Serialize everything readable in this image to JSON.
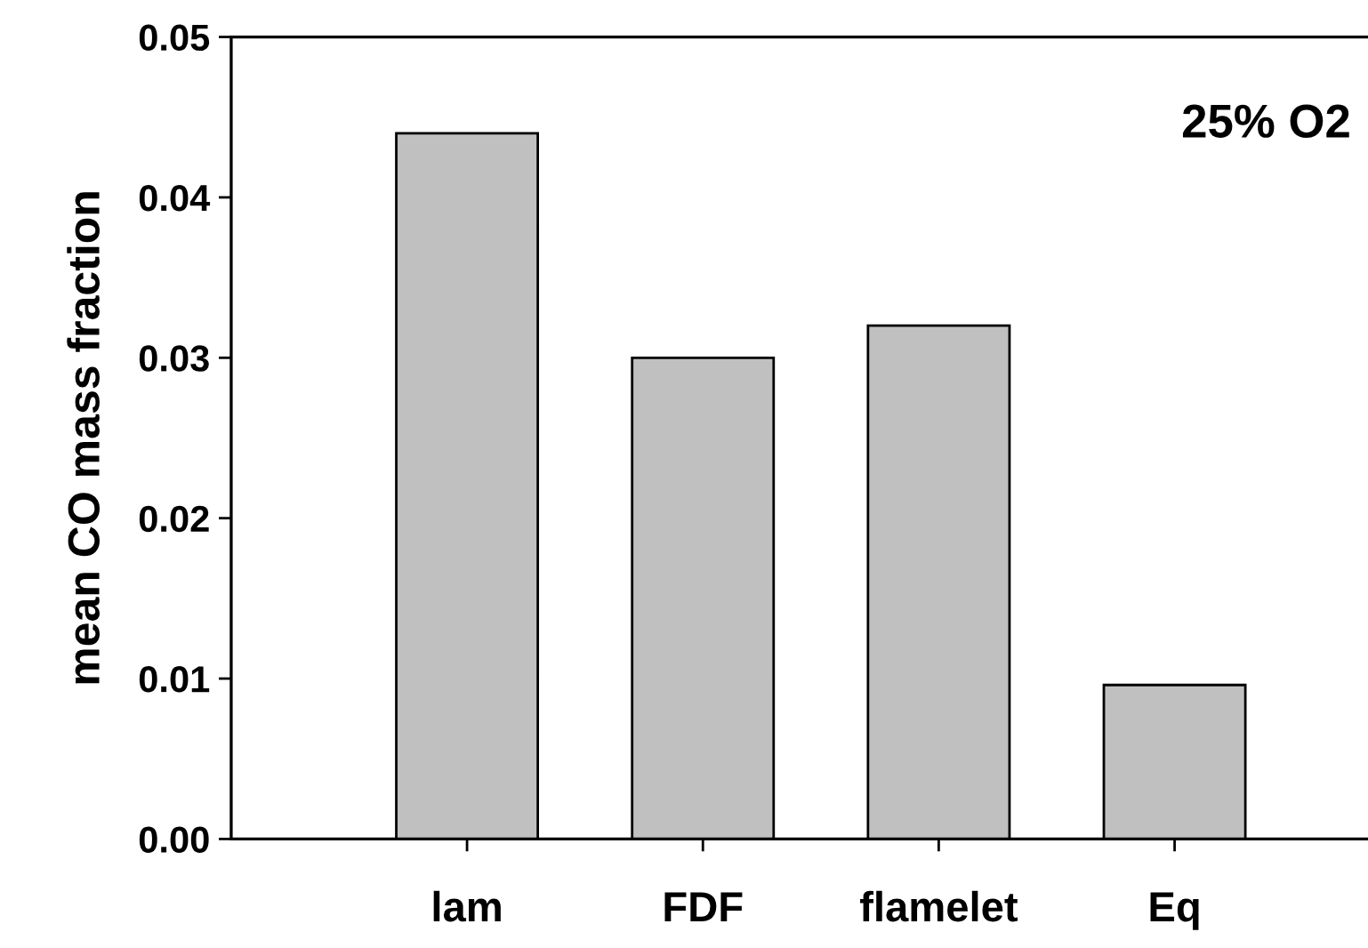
{
  "chart_data": {
    "type": "bar",
    "ylabel": "mean CO mass fraction",
    "categories": [
      "lam",
      "FDF",
      "flamelet",
      "Eq"
    ],
    "values": [
      0.044,
      0.03,
      0.032,
      0.0096
    ],
    "color": "#c0c0c0",
    "ylim": [
      0,
      0.05
    ],
    "yticks": [
      {
        "value": 0,
        "label": "0.00"
      },
      {
        "value": 0.01,
        "label": "0.01"
      },
      {
        "value": 0.02,
        "label": "0.02"
      },
      {
        "value": 0.03,
        "label": "0.03"
      },
      {
        "value": 0.04,
        "label": "0.04"
      },
      {
        "value": 0.05,
        "label": "0.05"
      }
    ],
    "annotations": [
      "25% O2"
    ],
    "grid": false
  }
}
